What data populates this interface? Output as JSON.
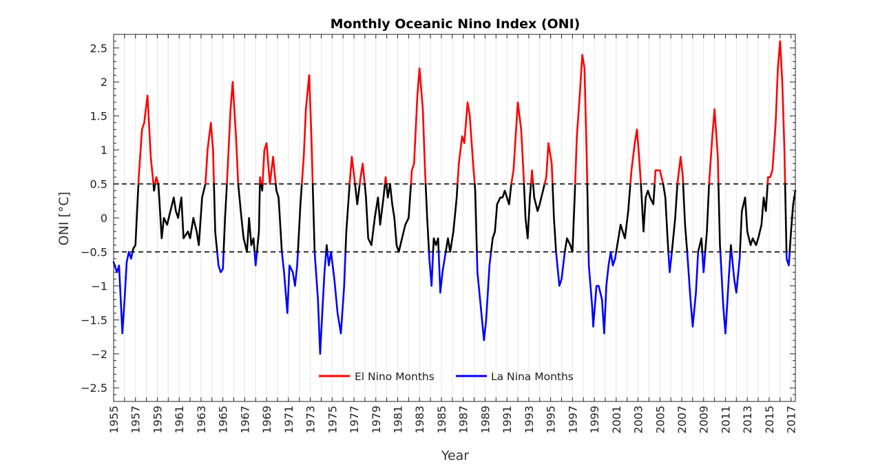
{
  "chart_data": {
    "type": "line",
    "title": "Monthly Oceanic Nino Index (ONI)",
    "xlabel": "Year",
    "ylabel": "ONI [°C]",
    "xlim": [
      1955,
      2017.4
    ],
    "ylim": [
      -2.7,
      2.7
    ],
    "x_ticks": [
      "1955",
      "1957",
      "1959",
      "1961",
      "1963",
      "1965",
      "1967",
      "1969",
      "1971",
      "1973",
      "1975",
      "1977",
      "1979",
      "1981",
      "1983",
      "1985",
      "1987",
      "1989",
      "1991",
      "1993",
      "1995",
      "1997",
      "1999",
      "2001",
      "2003",
      "2005",
      "2007",
      "2009",
      "2011",
      "2013",
      "2015",
      "2017"
    ],
    "y_ticks": [
      "-2.5",
      "-2",
      "-1.5",
      "-1",
      "-0.5",
      "0",
      "0.5",
      "1",
      "1.5",
      "2",
      "2.5"
    ],
    "thresholds": [
      0.5,
      -0.5
    ],
    "grid": "vertical",
    "legend_position": "bottom-center",
    "series": [
      {
        "name": "El Nino Months",
        "color": "#ff0000",
        "threshold": 0.5
      },
      {
        "name": "La Nina Months",
        "color": "#0000ff",
        "threshold": -0.5
      }
    ],
    "neutral_color": "#000000",
    "points": [
      [
        1955.0,
        -0.65
      ],
      [
        1955.3,
        -0.8
      ],
      [
        1955.5,
        -0.7
      ],
      [
        1955.8,
        -1.7
      ],
      [
        1956.0,
        -1.2
      ],
      [
        1956.2,
        -0.65
      ],
      [
        1956.4,
        -0.5
      ],
      [
        1956.6,
        -0.6
      ],
      [
        1956.8,
        -0.45
      ],
      [
        1957.0,
        -0.4
      ],
      [
        1957.3,
        0.6
      ],
      [
        1957.6,
        1.3
      ],
      [
        1957.8,
        1.4
      ],
      [
        1958.1,
        1.8
      ],
      [
        1958.4,
        0.9
      ],
      [
        1958.7,
        0.4
      ],
      [
        1958.9,
        0.6
      ],
      [
        1959.1,
        0.5
      ],
      [
        1959.4,
        -0.3
      ],
      [
        1959.6,
        0.0
      ],
      [
        1959.9,
        -0.1
      ],
      [
        1960.2,
        0.1
      ],
      [
        1960.5,
        0.3
      ],
      [
        1960.7,
        0.1
      ],
      [
        1960.9,
        0.0
      ],
      [
        1961.2,
        0.3
      ],
      [
        1961.4,
        -0.3
      ],
      [
        1961.8,
        -0.2
      ],
      [
        1962.0,
        -0.3
      ],
      [
        1962.3,
        0.0
      ],
      [
        1962.6,
        -0.2
      ],
      [
        1962.8,
        -0.4
      ],
      [
        1963.1,
        0.3
      ],
      [
        1963.4,
        0.5
      ],
      [
        1963.6,
        1.0
      ],
      [
        1963.9,
        1.4
      ],
      [
        1964.1,
        1.0
      ],
      [
        1964.3,
        -0.2
      ],
      [
        1964.6,
        -0.7
      ],
      [
        1964.8,
        -0.8
      ],
      [
        1965.0,
        -0.75
      ],
      [
        1965.2,
        0.0
      ],
      [
        1965.4,
        0.6
      ],
      [
        1965.7,
        1.6
      ],
      [
        1965.9,
        2.0
      ],
      [
        1966.2,
        1.2
      ],
      [
        1966.4,
        0.5
      ],
      [
        1966.7,
        0.0
      ],
      [
        1966.9,
        -0.3
      ],
      [
        1967.2,
        -0.5
      ],
      [
        1967.4,
        0.0
      ],
      [
        1967.6,
        -0.4
      ],
      [
        1967.8,
        -0.3
      ],
      [
        1968.0,
        -0.7
      ],
      [
        1968.3,
        -0.2
      ],
      [
        1968.4,
        0.6
      ],
      [
        1968.6,
        0.4
      ],
      [
        1968.8,
        1.0
      ],
      [
        1969.0,
        1.1
      ],
      [
        1969.3,
        0.5
      ],
      [
        1969.6,
        0.9
      ],
      [
        1969.9,
        0.4
      ],
      [
        1970.1,
        0.3
      ],
      [
        1970.4,
        -0.5
      ],
      [
        1970.6,
        -0.8
      ],
      [
        1970.9,
        -1.4
      ],
      [
        1971.1,
        -0.7
      ],
      [
        1971.4,
        -0.8
      ],
      [
        1971.6,
        -1.0
      ],
      [
        1971.8,
        -0.7
      ],
      [
        1972.1,
        0.2
      ],
      [
        1972.4,
        0.9
      ],
      [
        1972.6,
        1.6
      ],
      [
        1972.9,
        2.1
      ],
      [
        1973.1,
        1.2
      ],
      [
        1973.4,
        -0.5
      ],
      [
        1973.7,
        -1.2
      ],
      [
        1973.9,
        -2.0
      ],
      [
        1974.1,
        -1.4
      ],
      [
        1974.3,
        -0.8
      ],
      [
        1974.5,
        -0.4
      ],
      [
        1974.7,
        -0.7
      ],
      [
        1974.9,
        -0.5
      ],
      [
        1975.2,
        -0.9
      ],
      [
        1975.5,
        -1.4
      ],
      [
        1975.8,
        -1.7
      ],
      [
        1976.1,
        -1.0
      ],
      [
        1976.3,
        -0.2
      ],
      [
        1976.6,
        0.5
      ],
      [
        1976.8,
        0.9
      ],
      [
        1977.1,
        0.5
      ],
      [
        1977.3,
        0.2
      ],
      [
        1977.6,
        0.6
      ],
      [
        1977.8,
        0.8
      ],
      [
        1978.1,
        0.3
      ],
      [
        1978.3,
        -0.3
      ],
      [
        1978.6,
        -0.4
      ],
      [
        1978.9,
        0.0
      ],
      [
        1979.2,
        0.3
      ],
      [
        1979.4,
        -0.1
      ],
      [
        1979.7,
        0.3
      ],
      [
        1979.9,
        0.6
      ],
      [
        1980.1,
        0.3
      ],
      [
        1980.3,
        0.5
      ],
      [
        1980.5,
        0.2
      ],
      [
        1980.7,
        0.0
      ],
      [
        1980.9,
        -0.4
      ],
      [
        1981.1,
        -0.5
      ],
      [
        1981.4,
        -0.3
      ],
      [
        1981.7,
        -0.1
      ],
      [
        1982.0,
        0.0
      ],
      [
        1982.3,
        0.7
      ],
      [
        1982.5,
        0.8
      ],
      [
        1982.8,
        1.8
      ],
      [
        1983.0,
        2.2
      ],
      [
        1983.3,
        1.6
      ],
      [
        1983.5,
        0.7
      ],
      [
        1983.7,
        0.0
      ],
      [
        1983.9,
        -0.6
      ],
      [
        1984.1,
        -1.0
      ],
      [
        1984.3,
        -0.3
      ],
      [
        1984.5,
        -0.4
      ],
      [
        1984.7,
        -0.3
      ],
      [
        1984.9,
        -1.1
      ],
      [
        1985.1,
        -0.8
      ],
      [
        1985.4,
        -0.5
      ],
      [
        1985.6,
        -0.3
      ],
      [
        1985.8,
        -0.5
      ],
      [
        1986.1,
        -0.2
      ],
      [
        1986.4,
        0.3
      ],
      [
        1986.6,
        0.8
      ],
      [
        1986.9,
        1.2
      ],
      [
        1987.1,
        1.1
      ],
      [
        1987.4,
        1.7
      ],
      [
        1987.6,
        1.5
      ],
      [
        1987.9,
        0.8
      ],
      [
        1988.1,
        0.4
      ],
      [
        1988.3,
        -0.8
      ],
      [
        1988.6,
        -1.3
      ],
      [
        1988.9,
        -1.8
      ],
      [
        1989.1,
        -1.5
      ],
      [
        1989.4,
        -0.7
      ],
      [
        1989.7,
        -0.3
      ],
      [
        1989.9,
        -0.2
      ],
      [
        1990.1,
        0.2
      ],
      [
        1990.4,
        0.3
      ],
      [
        1990.6,
        0.3
      ],
      [
        1990.8,
        0.4
      ],
      [
        1991.0,
        0.3
      ],
      [
        1991.2,
        0.2
      ],
      [
        1991.4,
        0.5
      ],
      [
        1991.6,
        0.7
      ],
      [
        1991.8,
        1.2
      ],
      [
        1992.0,
        1.7
      ],
      [
        1992.3,
        1.3
      ],
      [
        1992.5,
        0.7
      ],
      [
        1992.7,
        0.0
      ],
      [
        1992.9,
        -0.3
      ],
      [
        1993.1,
        0.3
      ],
      [
        1993.3,
        0.7
      ],
      [
        1993.5,
        0.3
      ],
      [
        1993.8,
        0.1
      ],
      [
        1994.0,
        0.2
      ],
      [
        1994.3,
        0.4
      ],
      [
        1994.6,
        0.6
      ],
      [
        1994.8,
        1.1
      ],
      [
        1995.1,
        0.8
      ],
      [
        1995.3,
        0.0
      ],
      [
        1995.5,
        -0.5
      ],
      [
        1995.8,
        -1.0
      ],
      [
        1996.0,
        -0.9
      ],
      [
        1996.3,
        -0.5
      ],
      [
        1996.5,
        -0.3
      ],
      [
        1996.8,
        -0.4
      ],
      [
        1997.0,
        -0.5
      ],
      [
        1997.2,
        0.3
      ],
      [
        1997.4,
        1.2
      ],
      [
        1997.7,
        1.9
      ],
      [
        1997.9,
        2.4
      ],
      [
        1998.1,
        2.2
      ],
      [
        1998.3,
        0.9
      ],
      [
        1998.5,
        -0.7
      ],
      [
        1998.8,
        -1.3
      ],
      [
        1998.9,
        -1.6
      ],
      [
        1999.2,
        -1.0
      ],
      [
        1999.4,
        -1.0
      ],
      [
        1999.7,
        -1.2
      ],
      [
        1999.9,
        -1.7
      ],
      [
        2000.1,
        -1.0
      ],
      [
        2000.3,
        -0.7
      ],
      [
        2000.5,
        -0.5
      ],
      [
        2000.7,
        -0.7
      ],
      [
        2000.9,
        -0.6
      ],
      [
        2001.2,
        -0.3
      ],
      [
        2001.4,
        -0.1
      ],
      [
        2001.6,
        -0.2
      ],
      [
        2001.8,
        -0.3
      ],
      [
        2002.1,
        0.1
      ],
      [
        2002.4,
        0.7
      ],
      [
        2002.7,
        1.1
      ],
      [
        2002.9,
        1.3
      ],
      [
        2003.1,
        0.9
      ],
      [
        2003.3,
        0.4
      ],
      [
        2003.5,
        -0.2
      ],
      [
        2003.7,
        0.3
      ],
      [
        2003.9,
        0.4
      ],
      [
        2004.1,
        0.3
      ],
      [
        2004.4,
        0.2
      ],
      [
        2004.6,
        0.7
      ],
      [
        2004.8,
        0.7
      ],
      [
        2005.0,
        0.7
      ],
      [
        2005.3,
        0.5
      ],
      [
        2005.5,
        0.3
      ],
      [
        2005.7,
        -0.3
      ],
      [
        2005.9,
        -0.8
      ],
      [
        2006.1,
        -0.5
      ],
      [
        2006.4,
        0.0
      ],
      [
        2006.6,
        0.5
      ],
      [
        2006.9,
        0.9
      ],
      [
        2007.1,
        0.6
      ],
      [
        2007.3,
        -0.1
      ],
      [
        2007.5,
        -0.5
      ],
      [
        2007.8,
        -1.2
      ],
      [
        2008.0,
        -1.6
      ],
      [
        2008.3,
        -1.1
      ],
      [
        2008.5,
        -0.5
      ],
      [
        2008.8,
        -0.3
      ],
      [
        2009.0,
        -0.8
      ],
      [
        2009.3,
        -0.2
      ],
      [
        2009.5,
        0.5
      ],
      [
        2009.8,
        1.2
      ],
      [
        2010.0,
        1.6
      ],
      [
        2010.3,
        0.9
      ],
      [
        2010.5,
        -0.4
      ],
      [
        2010.8,
        -1.3
      ],
      [
        2011.0,
        -1.7
      ],
      [
        2011.3,
        -0.9
      ],
      [
        2011.5,
        -0.4
      ],
      [
        2011.8,
        -0.9
      ],
      [
        2012.0,
        -1.1
      ],
      [
        2012.3,
        -0.6
      ],
      [
        2012.5,
        0.1
      ],
      [
        2012.8,
        0.3
      ],
      [
        2013.0,
        -0.2
      ],
      [
        2013.3,
        -0.4
      ],
      [
        2013.5,
        -0.3
      ],
      [
        2013.8,
        -0.4
      ],
      [
        2014.0,
        -0.3
      ],
      [
        2014.3,
        -0.1
      ],
      [
        2014.5,
        0.3
      ],
      [
        2014.7,
        0.1
      ],
      [
        2014.9,
        0.6
      ],
      [
        2015.1,
        0.6
      ],
      [
        2015.3,
        0.7
      ],
      [
        2015.6,
        1.4
      ],
      [
        2015.8,
        2.2
      ],
      [
        2016.0,
        2.6
      ],
      [
        2016.2,
        2.0
      ],
      [
        2016.4,
        1.0
      ],
      [
        2016.6,
        -0.6
      ],
      [
        2016.8,
        -0.7
      ],
      [
        2017.0,
        -0.2
      ],
      [
        2017.2,
        0.2
      ],
      [
        2017.4,
        0.4
      ]
    ]
  }
}
